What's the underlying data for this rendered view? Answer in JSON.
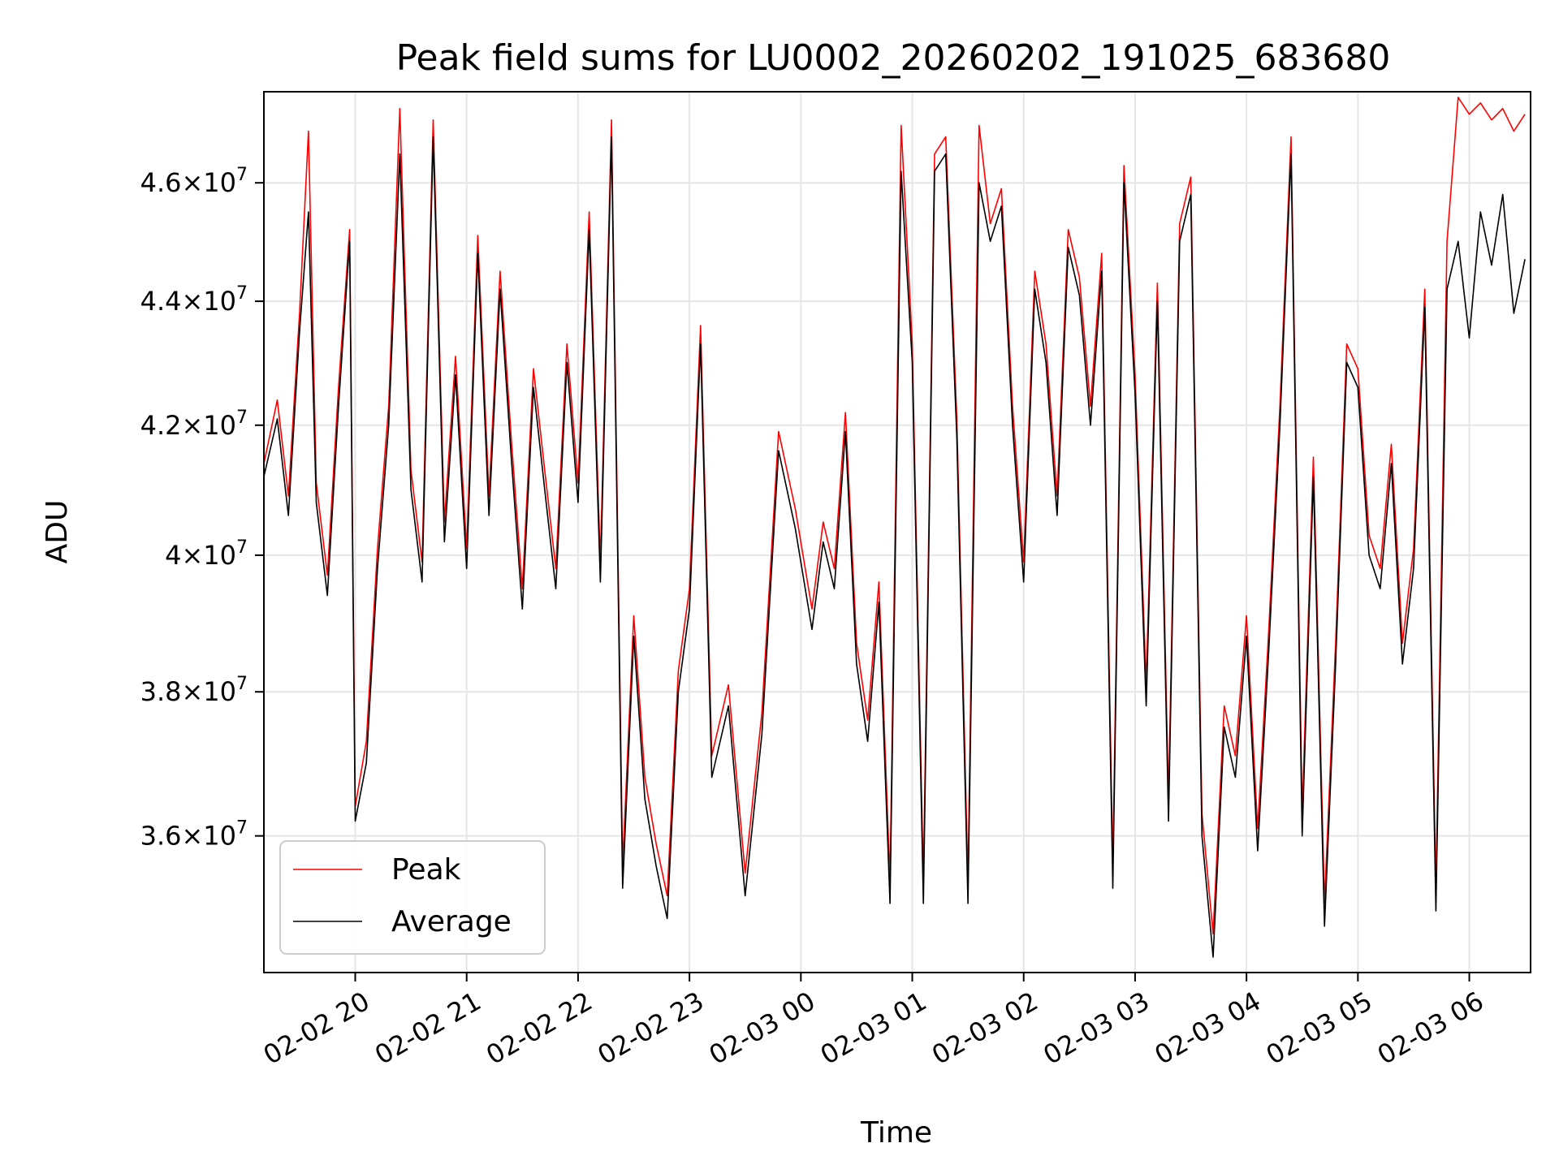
{
  "chart_data": {
    "type": "line",
    "title": "Peak field sums for LU0002_20260202_191025_683680",
    "xlabel": "Time",
    "ylabel": "ADU",
    "x_range_hours": [
      -0.82,
      10.55
    ],
    "ylim": [
      34200000,
      47600000
    ],
    "y_scale": "log",
    "grid": true,
    "legend_position": "lower-left",
    "x_ticks": [
      {
        "hours": 0,
        "label": "02-02 20"
      },
      {
        "hours": 1,
        "label": "02-02 21"
      },
      {
        "hours": 2,
        "label": "02-02 22"
      },
      {
        "hours": 3,
        "label": "02-02 23"
      },
      {
        "hours": 4,
        "label": "02-03 00"
      },
      {
        "hours": 5,
        "label": "02-03 01"
      },
      {
        "hours": 6,
        "label": "02-03 02"
      },
      {
        "hours": 7,
        "label": "02-03 03"
      },
      {
        "hours": 8,
        "label": "02-03 04"
      },
      {
        "hours": 9,
        "label": "02-03 05"
      },
      {
        "hours": 10,
        "label": "02-03 06"
      }
    ],
    "y_ticks": [
      {
        "value": 36000000,
        "mantissa": "3.6",
        "sup": "7"
      },
      {
        "value": 38000000,
        "mantissa": "3.8",
        "sup": "7"
      },
      {
        "value": 40000000,
        "mantissa": "4",
        "sup": "7"
      },
      {
        "value": 42000000,
        "mantissa": "4.2",
        "sup": "7"
      },
      {
        "value": 44000000,
        "mantissa": "4.4",
        "sup": "7"
      },
      {
        "value": 46000000,
        "mantissa": "4.6",
        "sup": "7"
      }
    ],
    "series": [
      {
        "name": "Peak",
        "color": "#ff0000"
      },
      {
        "name": "Average",
        "color": "#000000"
      }
    ],
    "x_hours": [
      -0.82,
      -0.7,
      -0.6,
      -0.5,
      -0.42,
      -0.35,
      -0.25,
      -0.15,
      -0.05,
      0.0,
      0.1,
      0.2,
      0.3,
      0.4,
      0.5,
      0.6,
      0.7,
      0.8,
      0.9,
      1.0,
      1.1,
      1.2,
      1.3,
      1.4,
      1.5,
      1.6,
      1.7,
      1.8,
      1.9,
      2.0,
      2.1,
      2.2,
      2.3,
      2.4,
      2.5,
      2.6,
      2.7,
      2.8,
      2.9,
      3.0,
      3.1,
      3.2,
      3.35,
      3.5,
      3.65,
      3.8,
      3.95,
      4.1,
      4.2,
      4.3,
      4.4,
      4.5,
      4.6,
      4.7,
      4.8,
      4.9,
      5.0,
      5.1,
      5.2,
      5.3,
      5.4,
      5.5,
      5.6,
      5.7,
      5.8,
      5.9,
      6.0,
      6.1,
      6.2,
      6.3,
      6.4,
      6.5,
      6.6,
      6.7,
      6.8,
      6.9,
      7.0,
      7.1,
      7.2,
      7.3,
      7.4,
      7.5,
      7.6,
      7.7,
      7.8,
      7.9,
      8.0,
      8.1,
      8.2,
      8.3,
      8.4,
      8.5,
      8.6,
      8.7,
      8.8,
      8.9,
      9.0,
      9.1,
      9.2,
      9.3,
      9.4,
      9.5,
      9.6,
      9.7,
      9.8,
      9.9,
      10.0,
      10.1,
      10.2,
      10.3,
      10.4,
      10.5
    ],
    "average": [
      41200000,
      42100000,
      40600000,
      43500000,
      45500000,
      40800000,
      39400000,
      42300000,
      45000000,
      36200000,
      37000000,
      39800000,
      42000000,
      46500000,
      41000000,
      39600000,
      46800000,
      40200000,
      42800000,
      39800000,
      44800000,
      40600000,
      44200000,
      41500000,
      39200000,
      42600000,
      41000000,
      39500000,
      43000000,
      40800000,
      45200000,
      39600000,
      46800000,
      35300000,
      38800000,
      36500000,
      35600000,
      34900000,
      38000000,
      39200000,
      43300000,
      36800000,
      37800000,
      35200000,
      37400000,
      41600000,
      40400000,
      38900000,
      40200000,
      39500000,
      41900000,
      38400000,
      37300000,
      39300000,
      35100000,
      46200000,
      43000000,
      35100000,
      46200000,
      46500000,
      41800000,
      35100000,
      46000000,
      45000000,
      45600000,
      42000000,
      39600000,
      44200000,
      43000000,
      40600000,
      44900000,
      44100000,
      42000000,
      44500000,
      35300000,
      46000000,
      42500000,
      37800000,
      44000000,
      36200000,
      45000000,
      45800000,
      36000000,
      34400000,
      37500000,
      36800000,
      38800000,
      35800000,
      38600000,
      42000000,
      46500000,
      36000000,
      41200000,
      34800000,
      38400000,
      43000000,
      42600000,
      40000000,
      39500000,
      41400000,
      38400000,
      39800000,
      43900000,
      35000000,
      44200000,
      45000000,
      43400000,
      45500000,
      44600000,
      45800000,
      43800000,
      44700000
    ],
    "peak": [
      41400000,
      42400000,
      40900000,
      43800000,
      46900000,
      41100000,
      39700000,
      42600000,
      45200000,
      36400000,
      37300000,
      40100000,
      42300000,
      47300000,
      41300000,
      39900000,
      47100000,
      40500000,
      43100000,
      40100000,
      45100000,
      40900000,
      44500000,
      41800000,
      39500000,
      42900000,
      41300000,
      39800000,
      43300000,
      41100000,
      45500000,
      39900000,
      47100000,
      35600000,
      39100000,
      36800000,
      35900000,
      35200000,
      38300000,
      39500000,
      43600000,
      37100000,
      38100000,
      35500000,
      37700000,
      41900000,
      40700000,
      39200000,
      40500000,
      39800000,
      42200000,
      38700000,
      37600000,
      39600000,
      35400000,
      47000000,
      43300000,
      35400000,
      46500000,
      46800000,
      42100000,
      35400000,
      47000000,
      45300000,
      45900000,
      42300000,
      39900000,
      44500000,
      43300000,
      40900000,
      45200000,
      44400000,
      42300000,
      44800000,
      35600000,
      46300000,
      42800000,
      38100000,
      44300000,
      36500000,
      45300000,
      46100000,
      36300000,
      34700000,
      37800000,
      37100000,
      39100000,
      36100000,
      38900000,
      42300000,
      46800000,
      36300000,
      41500000,
      35100000,
      38700000,
      43300000,
      42900000,
      40300000,
      39800000,
      41700000,
      38700000,
      40100000,
      44200000,
      35300000,
      45000000,
      47500000,
      47200000,
      47400000,
      47100000,
      47300000,
      46900000,
      47200000
    ]
  },
  "legend": {
    "peak_label": "Peak",
    "average_label": "Average"
  }
}
